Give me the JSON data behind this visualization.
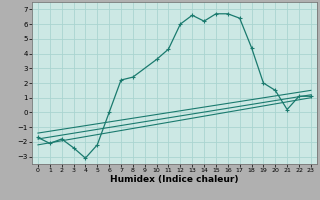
{
  "xlabel": "Humidex (Indice chaleur)",
  "background_color": "#cce8e4",
  "label_bg_color": "#a0a0a0",
  "grid_color": "#aad4d0",
  "line_color": "#1a7a6e",
  "xlim": [
    -0.5,
    23.5
  ],
  "ylim": [
    -3.5,
    7.5
  ],
  "yticks": [
    -3,
    -2,
    -1,
    0,
    1,
    2,
    3,
    4,
    5,
    6,
    7
  ],
  "xticks": [
    0,
    1,
    2,
    3,
    4,
    5,
    6,
    7,
    8,
    9,
    10,
    11,
    12,
    13,
    14,
    15,
    16,
    17,
    18,
    19,
    20,
    21,
    22,
    23
  ],
  "line1_x": [
    0,
    1,
    2,
    3,
    4,
    5,
    6,
    7,
    8,
    10,
    11,
    12,
    13,
    14,
    15,
    16,
    17,
    18,
    19,
    20,
    21,
    22,
    23
  ],
  "line1_y": [
    -1.7,
    -2.1,
    -1.8,
    -2.4,
    -3.1,
    -2.2,
    0.0,
    2.2,
    2.4,
    3.6,
    4.3,
    6.0,
    6.6,
    6.2,
    6.7,
    6.7,
    6.4,
    4.4,
    2.0,
    1.5,
    0.2,
    1.1,
    1.1
  ],
  "line2_x": [
    0,
    23
  ],
  "line2_y": [
    -2.2,
    1.0
  ],
  "line3_x": [
    0,
    23
  ],
  "line3_y": [
    -1.8,
    1.2
  ],
  "line4_x": [
    0,
    23
  ],
  "line4_y": [
    -1.4,
    1.5
  ]
}
